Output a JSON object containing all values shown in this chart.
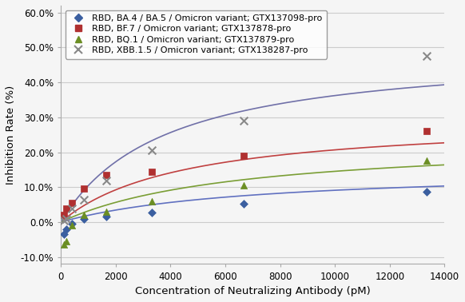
{
  "title": "",
  "xlabel": "Concentration of Neutralizing Antibody (pM)",
  "ylabel": "Inhibition Rate (%)",
  "xlim": [
    0,
    14000
  ],
  "ylim": [
    -0.12,
    0.62
  ],
  "yticks": [
    -0.1,
    0.0,
    0.1,
    0.2,
    0.3,
    0.4,
    0.5,
    0.6
  ],
  "ytick_labels": [
    "-10.0%",
    "0.0%",
    "10.0%",
    "20.0%",
    "30.0%",
    "40.0%",
    "50.0%",
    "60.0%"
  ],
  "xticks": [
    0,
    2000,
    4000,
    6000,
    8000,
    10000,
    12000,
    14000
  ],
  "series": [
    {
      "label": "RBD, BA.4 / BA.5 / Omicron variant; GTX137098-pro",
      "x": [
        104,
        208,
        417,
        833,
        1667,
        3333,
        6667,
        13333
      ],
      "y": [
        -0.035,
        -0.02,
        -0.005,
        0.01,
        0.015,
        0.028,
        0.052,
        0.088
      ],
      "color": "#3B5FA0",
      "marker": "D",
      "markersize": 5,
      "curve_color": "#6070C0",
      "Vmax": 0.155,
      "Km": 7000
    },
    {
      "label": "RBD, BF.7 / Omicron variant; GTX137878-pro",
      "x": [
        104,
        208,
        417,
        833,
        1667,
        3333,
        6667,
        13333
      ],
      "y": [
        0.02,
        0.04,
        0.055,
        0.095,
        0.135,
        0.145,
        0.19,
        0.26
      ],
      "color": "#B03030",
      "marker": "s",
      "markersize": 6,
      "curve_color": "#C04040",
      "Vmax": 0.3,
      "Km": 4500
    },
    {
      "label": "RBD, BQ.1 / Omicron variant; GTX137879-pro",
      "x": [
        104,
        208,
        417,
        833,
        1667,
        3333,
        6667,
        13333
      ],
      "y": [
        -0.065,
        -0.055,
        -0.01,
        0.02,
        0.03,
        0.06,
        0.105,
        0.175
      ],
      "color": "#6B8E23",
      "marker": "^",
      "markersize": 6,
      "curve_color": "#7A9E35",
      "Vmax": 0.24,
      "Km": 6500
    },
    {
      "label": "RBD, XBB.1.5 / Omicron variant; GTX138287-pro",
      "x": [
        104,
        208,
        417,
        833,
        1667,
        3333,
        6667,
        13333
      ],
      "y": [
        0.005,
        0.01,
        0.04,
        0.065,
        0.12,
        0.205,
        0.29,
        0.475
      ],
      "color": "#888888",
      "marker": "x",
      "markersize": 7,
      "curve_color": "#7070A8",
      "Vmax": 0.5,
      "Km": 3800
    }
  ],
  "background_color": "#f5f5f5",
  "grid_color": "#cccccc",
  "legend_fontsize": 8,
  "axis_fontsize": 9.5,
  "tick_fontsize": 8.5
}
